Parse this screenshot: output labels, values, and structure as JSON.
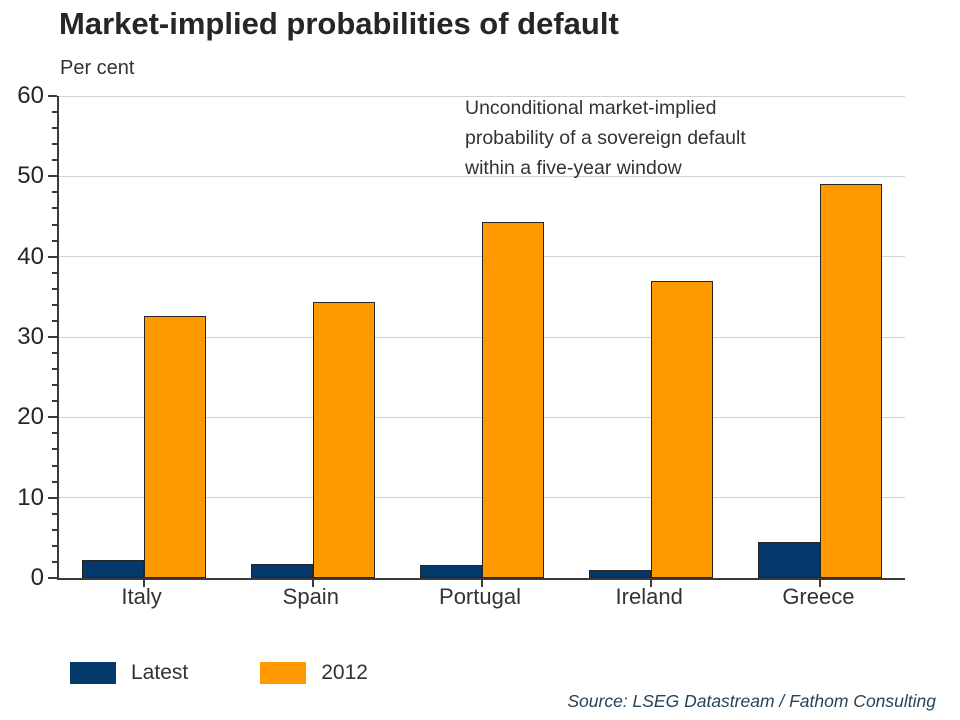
{
  "chart_data": {
    "type": "bar",
    "title": "Market-implied probabilities of default",
    "ylabel": "Per cent",
    "xlabel": "",
    "categories": [
      "Italy",
      "Spain",
      "Portugal",
      "Ireland",
      "Greece"
    ],
    "series": [
      {
        "name": "Latest",
        "color": "#043A6B",
        "values": [
          2.2,
          1.7,
          1.6,
          1.0,
          4.5
        ]
      },
      {
        "name": "2012",
        "color": "#FF9900",
        "values": [
          32.6,
          34.4,
          44.3,
          37.0,
          49.1
        ]
      }
    ],
    "ylim": [
      0,
      60
    ],
    "ytick_step": 10,
    "minor_tick_step": 2,
    "grid": "horizontal-major",
    "legend_position": "bottom-left",
    "bar_border_color": "#262626",
    "annotation": "Unconditional market-implied probability of a sovereign default within a five-year window",
    "source": "Source: LSEG Datastream / Fathom Consulting"
  }
}
